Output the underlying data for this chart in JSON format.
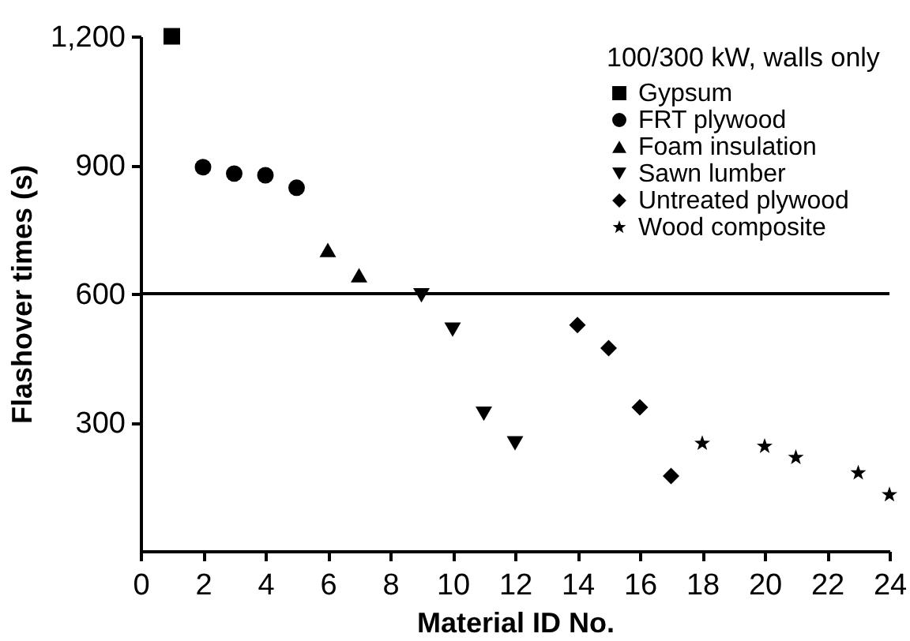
{
  "chart_data": {
    "type": "scatter",
    "xlabel": "Material ID No.",
    "ylabel": "Flashover times (s)",
    "legend_title": "100/300 kW, walls only",
    "xlim": [
      0,
      24
    ],
    "xticks": [
      0,
      2,
      4,
      6,
      8,
      10,
      12,
      14,
      16,
      18,
      20,
      22,
      24
    ],
    "ylim": [
      0,
      1200
    ],
    "yticks": [
      300,
      600,
      900,
      {
        "value": 1200,
        "label": "1,200"
      }
    ],
    "legend": "top right",
    "grid": false,
    "ref_lines": [
      {
        "axis": "y",
        "value": 600,
        "color": "#000000",
        "line_style": "solid"
      }
    ],
    "series": [
      {
        "name": "Gypsum",
        "color": "#000000",
        "marker": "square",
        "x": [
          1
        ],
        "values": [
          1200
        ]
      },
      {
        "name": "FRT plywood",
        "color": "#000000",
        "marker": "circle",
        "x": [
          2,
          3,
          4,
          5
        ],
        "values": [
          895,
          880,
          876,
          847
        ]
      },
      {
        "name": "Foam insulation",
        "color": "#000000",
        "marker": "triangle",
        "x": [
          6,
          7
        ],
        "values": [
          702,
          643
        ]
      },
      {
        "name": "Sawn lumber",
        "color": "#000000",
        "marker": "triangle-down",
        "x": [
          9,
          10,
          11,
          12
        ],
        "values": [
          596,
          516,
          320,
          251
        ]
      },
      {
        "name": "Untreated plywood",
        "color": "#000000",
        "marker": "diamond",
        "x": [
          14,
          15,
          16,
          17
        ],
        "values": [
          527,
          473,
          335,
          175
        ]
      },
      {
        "name": "Wood composite",
        "color": "#000000",
        "marker": "star",
        "x": [
          18,
          20,
          21,
          23,
          24
        ],
        "values": [
          251,
          244,
          218,
          182,
          131
        ]
      }
    ]
  }
}
